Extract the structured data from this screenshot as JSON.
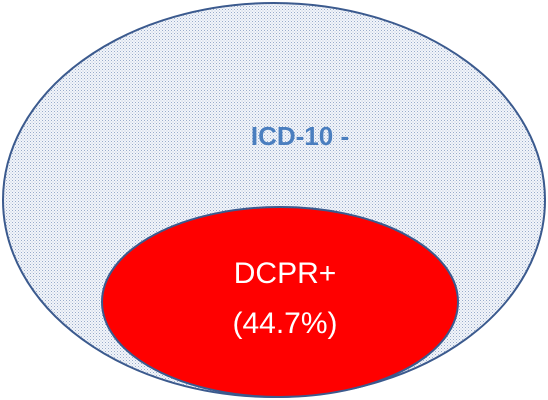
{
  "outer": {
    "label": "ICD-10 -"
  },
  "inner": {
    "label": "DCPR+",
    "sublabel": "(44.7%)"
  }
}
